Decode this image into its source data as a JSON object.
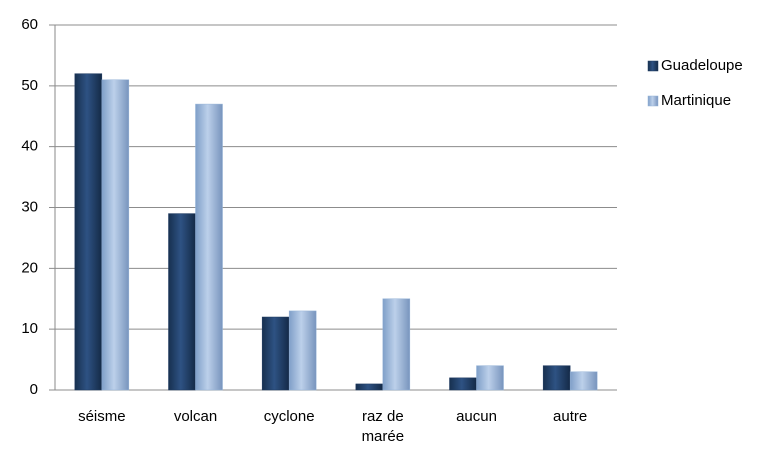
{
  "chart_data": {
    "type": "bar",
    "categories": [
      "séisme",
      "volcan",
      "cyclone",
      "raz de marée",
      "aucun",
      "autre"
    ],
    "series": [
      {
        "name": "Guadeloupe",
        "color": "#1f3a60",
        "values": [
          52,
          29,
          12,
          1,
          2,
          4
        ]
      },
      {
        "name": "Martinique",
        "color": "#95b3d7",
        "values": [
          51,
          47,
          13,
          15,
          4,
          3
        ]
      }
    ],
    "ylim": [
      0,
      60
    ],
    "yticks": [
      0,
      10,
      20,
      30,
      40,
      50,
      60
    ],
    "grid": true,
    "legend": "right"
  }
}
